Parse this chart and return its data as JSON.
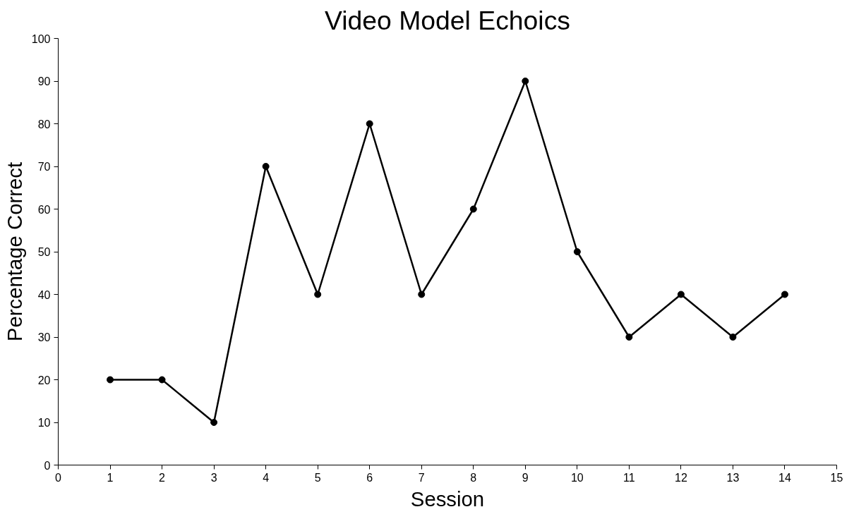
{
  "chart_data": {
    "type": "line",
    "title": "Video Model Echoics",
    "xlabel": "Session",
    "ylabel": "Percentage Correct",
    "x": [
      1,
      2,
      3,
      4,
      5,
      6,
      7,
      8,
      9,
      10,
      11,
      12,
      13,
      14
    ],
    "series": [
      {
        "color": "#000000",
        "values": [
          20,
          20,
          10,
          70,
          40,
          80,
          40,
          60,
          90,
          50,
          30,
          40,
          30,
          40
        ]
      }
    ],
    "xlim": [
      0,
      15
    ],
    "xticks": [
      0,
      1,
      2,
      3,
      4,
      5,
      6,
      7,
      8,
      9,
      10,
      11,
      12,
      13,
      14,
      15
    ],
    "ylim": [
      0,
      100
    ],
    "yticks": [
      0,
      10,
      20,
      30,
      40,
      50,
      60,
      70,
      80,
      90,
      100
    ],
    "grid": false,
    "marker": "circle",
    "line_style": "solid"
  }
}
